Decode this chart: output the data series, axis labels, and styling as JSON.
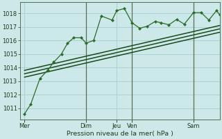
{
  "xlabel": "Pression niveau de la mer( hPa )",
  "background_color": "#cce8e8",
  "grid_color": "#a8cccc",
  "line_color": "#2a6b2a",
  "dark_line_color": "#1a4a1a",
  "ylim": [
    1010.2,
    1018.8
  ],
  "xlim": [
    0,
    13.0
  ],
  "yticks": [
    1011,
    1012,
    1013,
    1014,
    1015,
    1016,
    1017,
    1018
  ],
  "xtick_positions": [
    0.3,
    4.3,
    6.3,
    7.3,
    11.3,
    13.0
  ],
  "xtick_labels": [
    "Mer",
    "Dim",
    "Jeu",
    "Ven",
    "Sam",
    ""
  ],
  "series1_x": [
    0.3,
    0.7,
    1.3,
    1.8,
    2.2,
    2.7,
    3.1,
    3.5,
    4.0,
    4.3,
    4.8,
    5.3,
    6.0,
    6.3,
    6.8,
    7.3,
    7.8,
    8.3,
    8.8,
    9.2,
    9.7,
    10.2,
    10.7,
    11.3,
    11.8,
    12.3,
    12.8,
    13.0
  ],
  "series1_y": [
    1010.6,
    1011.3,
    1013.2,
    1013.8,
    1014.4,
    1015.0,
    1015.8,
    1016.2,
    1016.2,
    1015.8,
    1016.0,
    1017.8,
    1017.5,
    1018.2,
    1018.35,
    1017.3,
    1016.9,
    1017.05,
    1017.4,
    1017.3,
    1017.15,
    1017.55,
    1017.2,
    1018.05,
    1018.05,
    1017.5,
    1018.2,
    1017.9
  ],
  "trend1_x": [
    0.3,
    13.0
  ],
  "trend1_y": [
    1013.3,
    1016.6
  ],
  "trend2_x": [
    0.3,
    13.0
  ],
  "trend2_y": [
    1013.55,
    1016.85
  ],
  "trend3_x": [
    0.3,
    13.0
  ],
  "trend3_y": [
    1013.8,
    1017.1
  ],
  "vline_positions": [
    4.3,
    7.3,
    11.3
  ],
  "vline_color": "#557055"
}
